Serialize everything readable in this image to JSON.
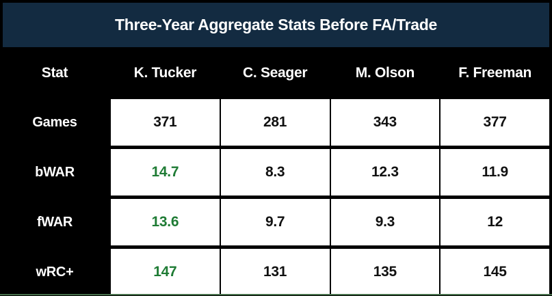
{
  "title": "Three-Year Aggregate Stats Before FA/Trade",
  "colors": {
    "header_bg": "#132b41",
    "highlight_green": "#1e7b34",
    "bottom_line": "#456f4a",
    "table_bg": "#000000",
    "cell_bg": "#ffffff"
  },
  "table": {
    "columns": [
      "Stat",
      "K. Tucker",
      "C. Seager",
      "M. Olson",
      "F. Freeman"
    ],
    "rows": [
      {
        "label": "Games",
        "values": [
          "371",
          "281",
          "343",
          "377"
        ]
      },
      {
        "label": "bWAR",
        "values": [
          "14.7",
          "8.3",
          "12.3",
          "11.9"
        ]
      },
      {
        "label": "fWAR",
        "values": [
          "13.6",
          "9.7",
          "9.3",
          "12"
        ]
      },
      {
        "label": "wRC+",
        "values": [
          "147",
          "131",
          "135",
          "145"
        ]
      }
    ]
  }
}
